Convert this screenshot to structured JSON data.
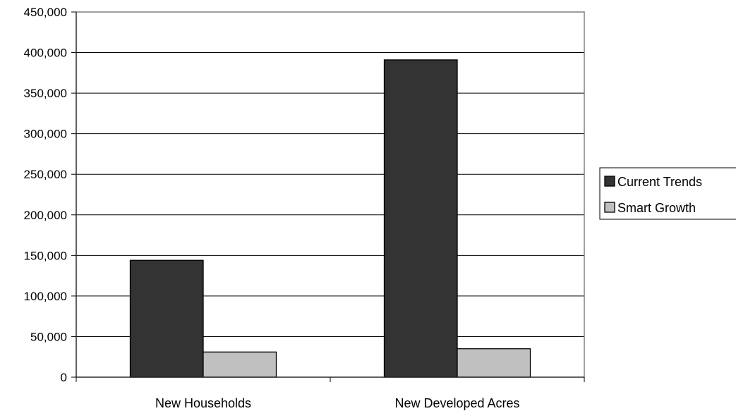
{
  "chart_data": {
    "type": "bar",
    "title": "",
    "xlabel": "",
    "ylabel": "",
    "categories": [
      "New Households",
      "New Developed Acres"
    ],
    "series": [
      {
        "name": "Current Trends",
        "values": [
          144000,
          391000
        ],
        "color": "#333333"
      },
      {
        "name": "Smart Growth",
        "values": [
          31000,
          35000
        ],
        "color": "#c0c0c0"
      }
    ],
    "ylim": [
      0,
      450000
    ],
    "yticks": [
      0,
      50000,
      100000,
      150000,
      200000,
      250000,
      300000,
      350000,
      400000,
      450000
    ],
    "ytick_labels": [
      "0",
      "50,000",
      "100,000",
      "150,000",
      "200,000",
      "250,000",
      "300,000",
      "350,000",
      "400,000",
      "450,000"
    ],
    "grid": true,
    "legend_position": "right"
  }
}
